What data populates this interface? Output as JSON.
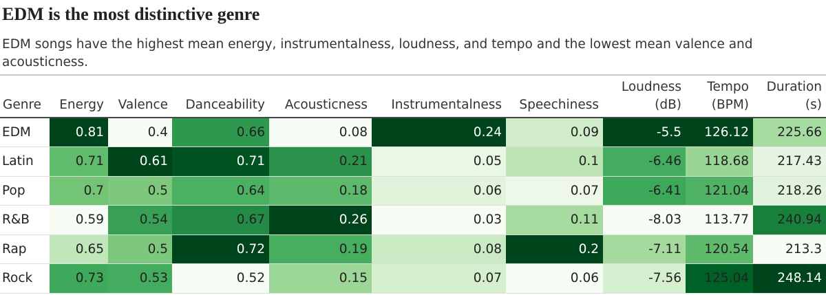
{
  "header": {
    "title": "EDM is the most distinctive genre",
    "subtitle": "EDM songs have the highest mean energy, instrumentalness, loudness, and tempo and the lowest mean valence and acousticness."
  },
  "table": {
    "columns": [
      "Genre",
      "Energy",
      "Valence",
      "Danceability",
      "Acousticness",
      "Instrumentalness",
      "Speechiness",
      "Loudness (dB)",
      "Tempo (BPM)",
      "Duration (s)"
    ],
    "rows": [
      [
        "EDM",
        0.81,
        0.4,
        0.66,
        0.08,
        0.24,
        0.09,
        -5.5,
        126.12,
        225.66
      ],
      [
        "Latin",
        0.71,
        0.61,
        0.71,
        0.21,
        0.05,
        0.1,
        -6.46,
        118.68,
        217.43
      ],
      [
        "Pop",
        0.7,
        0.5,
        0.64,
        0.18,
        0.06,
        0.07,
        -6.41,
        121.04,
        218.26
      ],
      [
        "R&B",
        0.59,
        0.54,
        0.67,
        0.26,
        0.03,
        0.11,
        -8.03,
        113.77,
        240.94
      ],
      [
        "Rap",
        0.65,
        0.5,
        0.72,
        0.19,
        0.08,
        0.2,
        -7.11,
        120.54,
        213.3
      ],
      [
        "Rock",
        0.73,
        0.53,
        0.52,
        0.15,
        0.07,
        0.06,
        -7.56,
        125.04,
        248.14
      ]
    ]
  }
}
